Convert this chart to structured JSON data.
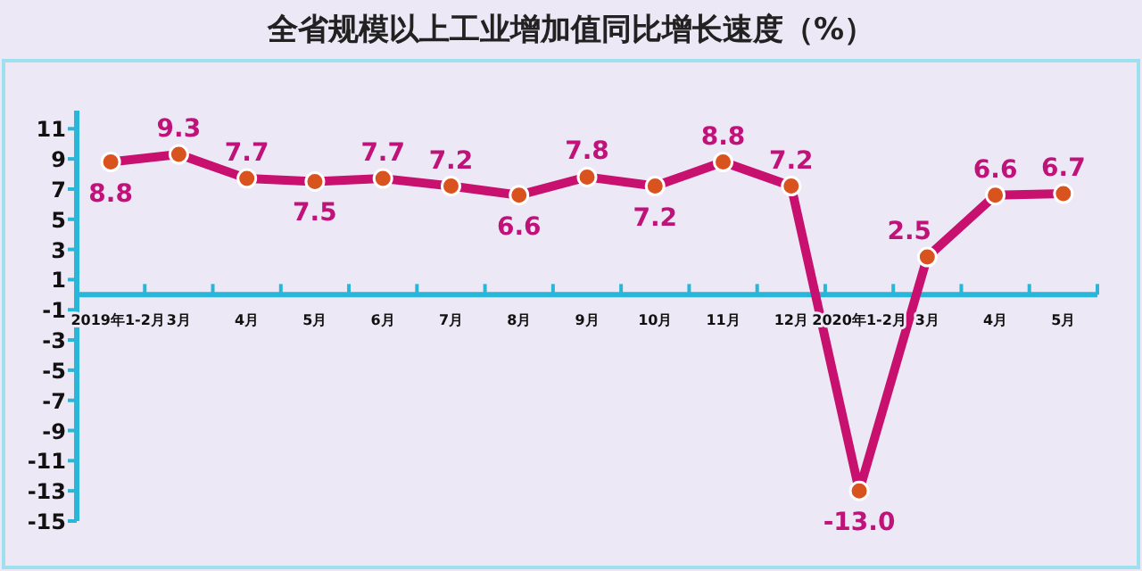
{
  "chart_data": {
    "type": "line",
    "title": "全省规模以上工业增加值同比增长速度（%）",
    "categories": [
      "2019年1-2月",
      "3月",
      "4月",
      "5月",
      "6月",
      "7月",
      "8月",
      "9月",
      "10月",
      "11月",
      "12月",
      "2020年1-2月",
      "3月",
      "4月",
      "5月"
    ],
    "values": [
      8.8,
      9.3,
      7.7,
      7.5,
      7.7,
      7.2,
      6.6,
      7.8,
      7.2,
      8.8,
      7.2,
      -13.0,
      2.5,
      6.6,
      6.7
    ],
    "value_labels": [
      "8.8",
      "9.3",
      "7.7",
      "7.5",
      "7.7",
      "7.2",
      "6.6",
      "7.8",
      "7.2",
      "8.8",
      "7.2",
      "-13.0",
      "2.5",
      "6.6",
      "6.7"
    ],
    "color": "#c8106e",
    "marker": "circle",
    "grid": false,
    "ylim": [
      -15,
      12.2
    ],
    "yticks": [
      11,
      9,
      7,
      5,
      3,
      1,
      -1,
      -3,
      -5,
      -7,
      -9,
      -11,
      -13,
      -15
    ]
  }
}
